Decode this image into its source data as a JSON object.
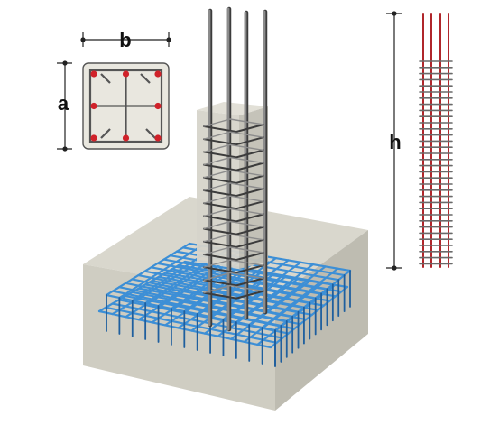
{
  "labels": {
    "a": "a",
    "b": "b",
    "h": "h"
  },
  "colors": {
    "background": "#ffffff",
    "concrete_light": "#dcdbd2",
    "concrete_mid": "#c9c7bc",
    "concrete_dark": "#b5b3a8",
    "mesh_rebar": "#3d8fd6",
    "mesh_rebar_dark": "#1f5f9e",
    "column_rebar": "#8c8c8c",
    "column_rebar_dark": "#3c3c3c",
    "section_bar": "#d0222a",
    "section_stirrup": "#555555",
    "elevation_rebar": "#b0262b",
    "elevation_stirrup": "#6a6a6a",
    "dimension_line": "#222222"
  },
  "icons": {
    "section_view": "column-cross-section-icon",
    "elevation_view": "column-elevation-icon"
  }
}
